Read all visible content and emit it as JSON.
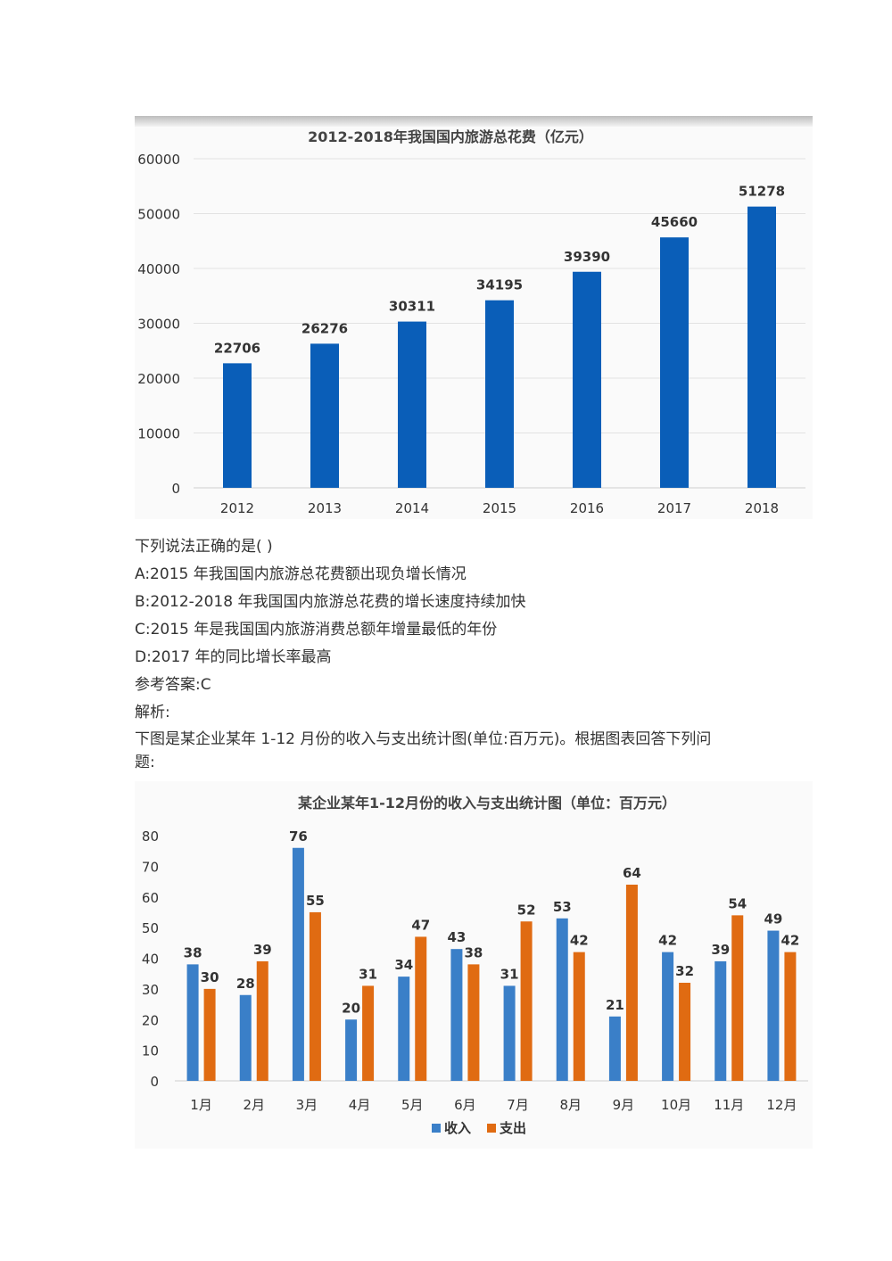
{
  "chart_data": [
    {
      "type": "bar",
      "title": "2012-2018年我国国内旅游总花费（亿元）",
      "categories": [
        "2012",
        "2013",
        "2014",
        "2015",
        "2016",
        "2017",
        "2018"
      ],
      "values": [
        22706,
        26276,
        30311,
        34195,
        39390,
        45660,
        51278
      ],
      "yticks": [
        "0",
        "10000",
        "20000",
        "30000",
        "40000",
        "50000",
        "60000"
      ],
      "ylim": [
        0,
        60000
      ],
      "color": "#0a5eb8",
      "grid": true,
      "xlabel": "",
      "ylabel": ""
    },
    {
      "type": "bar",
      "title": "某企业某年1-12月份的收入与支出统计图（单位：百万元）",
      "categories": [
        "1月",
        "2月",
        "3月",
        "4月",
        "5月",
        "6月",
        "7月",
        "8月",
        "9月",
        "10月",
        "11月",
        "12月"
      ],
      "series": [
        {
          "name": "收入",
          "values": [
            38,
            28,
            76,
            20,
            34,
            43,
            31,
            53,
            21,
            42,
            39,
            49
          ],
          "color": "#3a7fc8"
        },
        {
          "name": "支出",
          "values": [
            30,
            39,
            55,
            31,
            47,
            38,
            52,
            42,
            64,
            32,
            54,
            42
          ],
          "color": "#e06b12"
        }
      ],
      "yticks": [
        "0",
        "10",
        "20",
        "30",
        "40",
        "50",
        "60",
        "70",
        "80"
      ],
      "ylim": [
        0,
        80
      ],
      "legend": "bottom",
      "grid": false,
      "xlabel": "",
      "ylabel": ""
    }
  ],
  "question": {
    "stem": "下列说法正确的是( )",
    "options": [
      "A:2015 年我国国内旅游总花费额出现负增长情况",
      "B:2012-2018 年我国国内旅游总花费的增长速度持续加快",
      "C:2015 年是我国国内旅游消费总额年增量最低的年份",
      "D:2017 年的同比增长率最高"
    ],
    "answer": "参考答案:C",
    "analysis": "解析:"
  },
  "intro": {
    "line1": "下图是某企业某年 1-12 月份的收入与支出统计图(单位:百万元)。根据图表回答下列问",
    "line2": "题:"
  }
}
